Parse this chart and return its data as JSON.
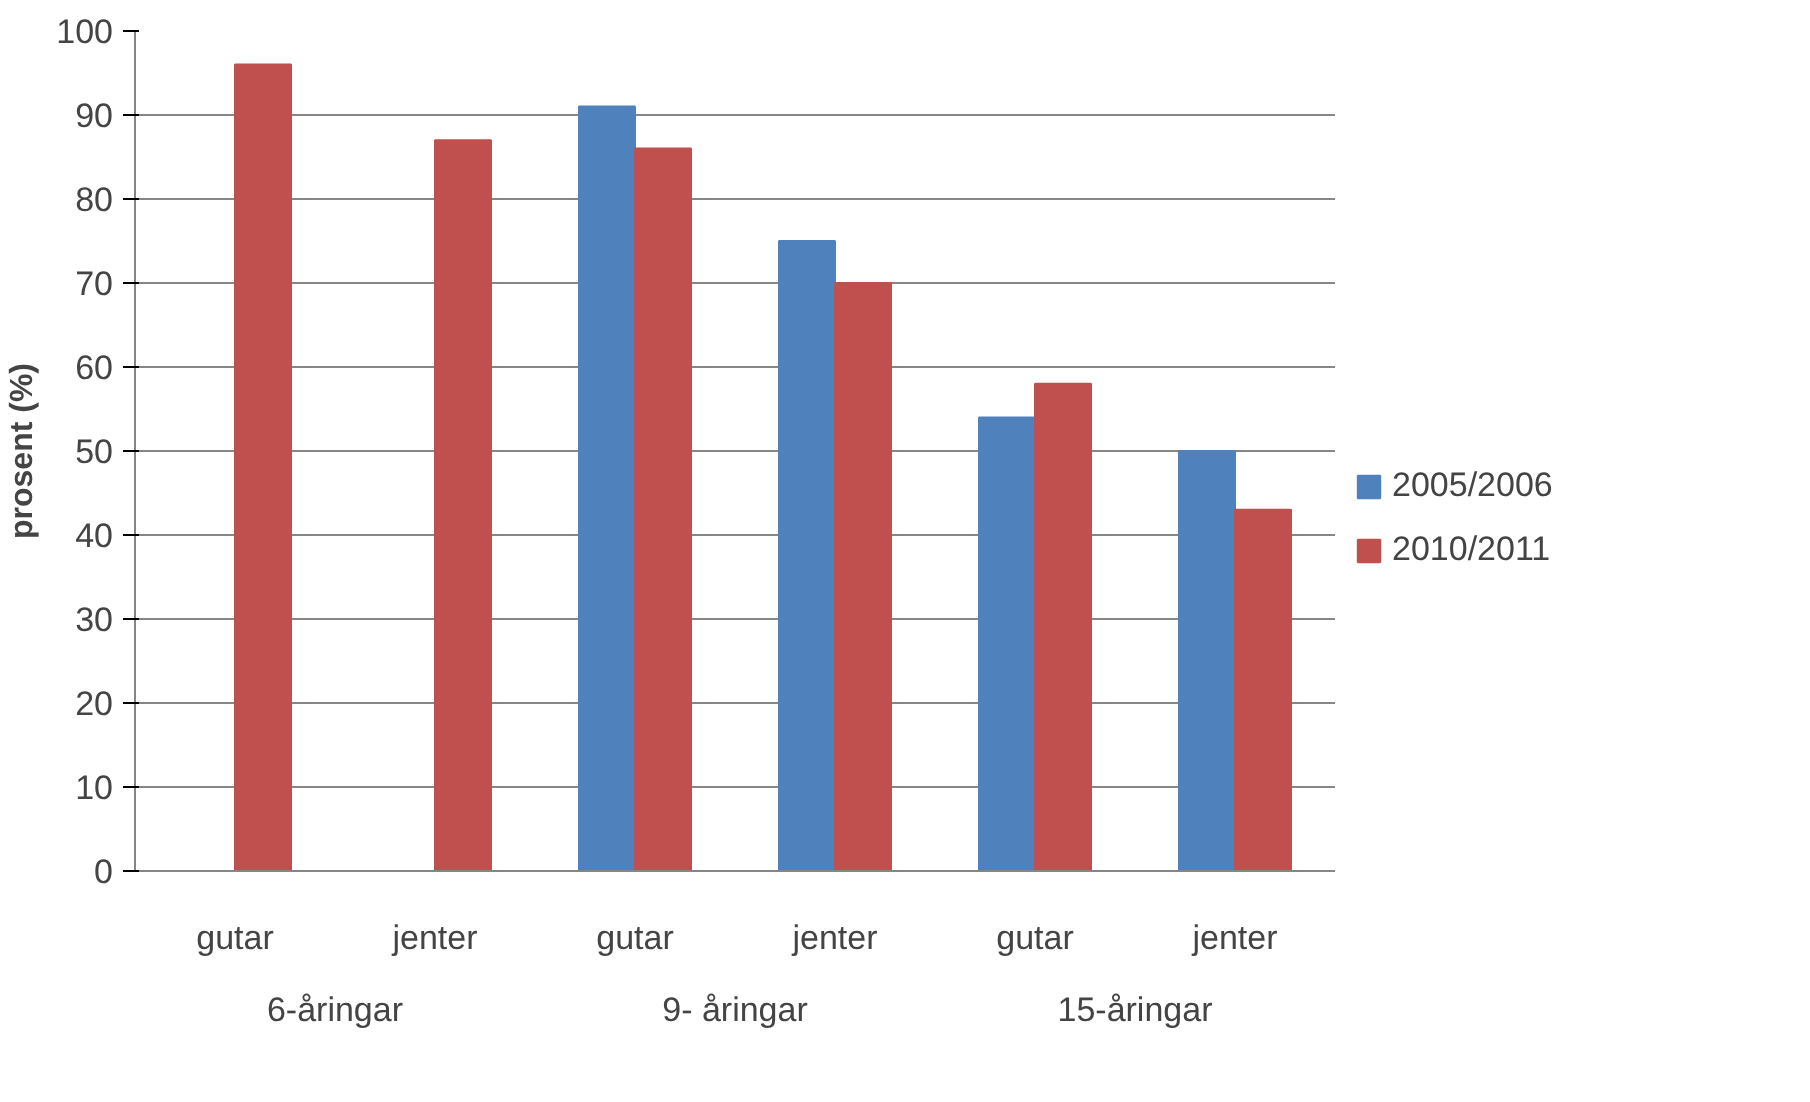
{
  "chart_data": {
    "type": "bar",
    "ylabel": "prosent (%)",
    "categories": [
      "gutar",
      "jenter",
      "gutar",
      "jenter",
      "gutar",
      "jenter"
    ],
    "annotations": [
      "6-åringar",
      "9- åringar",
      "15-åringar"
    ],
    "series": [
      {
        "name": "2005/2006",
        "color": "#4f81bd",
        "values": [
          null,
          null,
          91,
          75,
          54,
          50
        ]
      },
      {
        "name": "2010/2011",
        "color": "#c0504d",
        "values": [
          96,
          87,
          86,
          70,
          58,
          43
        ]
      }
    ],
    "ylim": [
      0,
      100
    ],
    "yticks": [
      0,
      10,
      20,
      30,
      40,
      50,
      60,
      70,
      80,
      90,
      100
    ],
    "grid": "y",
    "legend": "right"
  }
}
